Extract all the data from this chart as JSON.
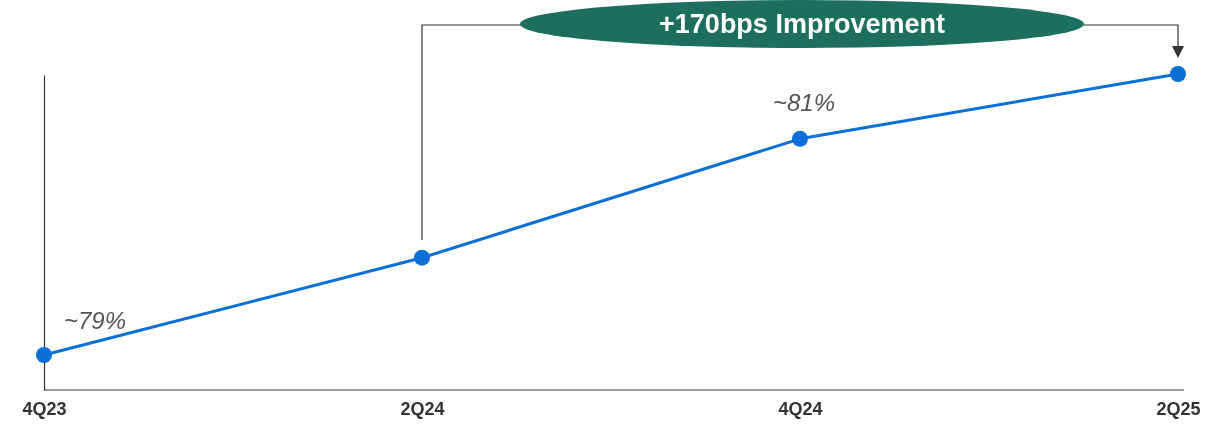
{
  "chart_data": {
    "type": "line",
    "categories": [
      "4Q23",
      "2Q24",
      "4Q24",
      "2Q25"
    ],
    "series": [
      {
        "color": "#0a6fd6",
        "values": [
          79,
          79.9,
          81,
          81.6
        ],
        "value_labels": [
          "~79%",
          null,
          "~81%",
          null
        ]
      }
    ],
    "marker": "circle",
    "line_style": "solid",
    "tick_labels": "x",
    "annotations": [
      "+170bps Improvement"
    ]
  }
}
